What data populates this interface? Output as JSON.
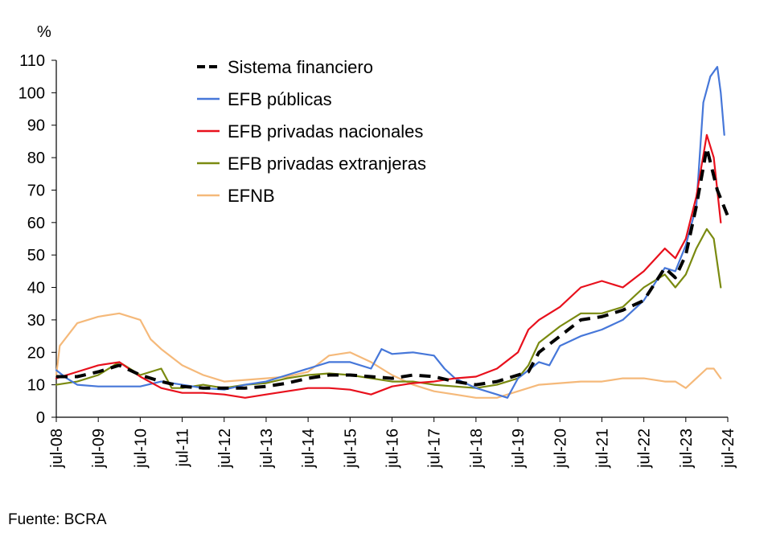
{
  "chart_data": {
    "type": "line",
    "ylabel": "%",
    "source": "Fuente: BCRA",
    "ylim": [
      0,
      110
    ],
    "yticks": [
      0,
      10,
      20,
      30,
      40,
      50,
      60,
      70,
      80,
      90,
      100,
      110
    ],
    "xlim": [
      "2008-07",
      "2024-07"
    ],
    "xticks": [
      {
        "date": "2008-07",
        "label": "jul-08"
      },
      {
        "date": "2009-07",
        "label": "jul-09"
      },
      {
        "date": "2010-07",
        "label": "jul-10"
      },
      {
        "date": "2011-07",
        "label": "jul-11"
      },
      {
        "date": "2012-07",
        "label": "jul-12"
      },
      {
        "date": "2013-07",
        "label": "jul-13"
      },
      {
        "date": "2014-07",
        "label": "jul-14"
      },
      {
        "date": "2015-07",
        "label": "jul-15"
      },
      {
        "date": "2016-07",
        "label": "jul-16"
      },
      {
        "date": "2017-07",
        "label": "jul-17"
      },
      {
        "date": "2018-07",
        "label": "jul-18"
      },
      {
        "date": "2019-07",
        "label": "jul-19"
      },
      {
        "date": "2020-07",
        "label": "jul-20"
      },
      {
        "date": "2021-07",
        "label": "jul-21"
      },
      {
        "date": "2022-07",
        "label": "jul-22"
      },
      {
        "date": "2023-07",
        "label": "jul-23"
      },
      {
        "date": "2024-07",
        "label": "jul-24"
      }
    ],
    "grid": false,
    "legend_position": "top-center",
    "series": [
      {
        "name": "Sistema financiero",
        "color": "#000000",
        "dashed": true,
        "points": [
          [
            "2008-07",
            12.5
          ],
          [
            "2009-01",
            12.5
          ],
          [
            "2009-07",
            14
          ],
          [
            "2010-01",
            16
          ],
          [
            "2010-07",
            13
          ],
          [
            "2011-01",
            11
          ],
          [
            "2011-07",
            9.5
          ],
          [
            "2012-01",
            9
          ],
          [
            "2012-07",
            9
          ],
          [
            "2013-01",
            9
          ],
          [
            "2013-07",
            9.5
          ],
          [
            "2014-01",
            10.5
          ],
          [
            "2014-07",
            12
          ],
          [
            "2015-01",
            13
          ],
          [
            "2015-07",
            13
          ],
          [
            "2016-01",
            12.5
          ],
          [
            "2016-07",
            12
          ],
          [
            "2017-01",
            13
          ],
          [
            "2017-07",
            12.5
          ],
          [
            "2018-01",
            11
          ],
          [
            "2018-07",
            10
          ],
          [
            "2019-01",
            11
          ],
          [
            "2019-07",
            13
          ],
          [
            "2019-10",
            14
          ],
          [
            "2020-01",
            20
          ],
          [
            "2020-07",
            25
          ],
          [
            "2021-01",
            30
          ],
          [
            "2021-07",
            31
          ],
          [
            "2022-01",
            33
          ],
          [
            "2022-07",
            36
          ],
          [
            "2023-01",
            46
          ],
          [
            "2023-04",
            43
          ],
          [
            "2023-07",
            50
          ],
          [
            "2023-10",
            65
          ],
          [
            "2024-01",
            83
          ],
          [
            "2024-04",
            70
          ],
          [
            "2024-07",
            62
          ]
        ]
      },
      {
        "name": "EFB públicas",
        "color": "#4677d9",
        "dashed": false,
        "points": [
          [
            "2008-07",
            14.5
          ],
          [
            "2008-10",
            12
          ],
          [
            "2009-01",
            10
          ],
          [
            "2009-07",
            9.5
          ],
          [
            "2010-01",
            9.5
          ],
          [
            "2010-07",
            9.5
          ],
          [
            "2011-01",
            11
          ],
          [
            "2011-07",
            10
          ],
          [
            "2012-01",
            9
          ],
          [
            "2012-07",
            8.5
          ],
          [
            "2013-01",
            10
          ],
          [
            "2013-07",
            11
          ],
          [
            "2014-01",
            13
          ],
          [
            "2014-07",
            15
          ],
          [
            "2015-01",
            17
          ],
          [
            "2015-07",
            17
          ],
          [
            "2016-01",
            15
          ],
          [
            "2016-04",
            21
          ],
          [
            "2016-07",
            19.5
          ],
          [
            "2017-01",
            20
          ],
          [
            "2017-07",
            19
          ],
          [
            "2017-10",
            15
          ],
          [
            "2018-01",
            12
          ],
          [
            "2018-07",
            9
          ],
          [
            "2019-01",
            7
          ],
          [
            "2019-04",
            6
          ],
          [
            "2019-07",
            12
          ],
          [
            "2020-01",
            17
          ],
          [
            "2020-04",
            16
          ],
          [
            "2020-07",
            22
          ],
          [
            "2021-01",
            25
          ],
          [
            "2021-07",
            27
          ],
          [
            "2022-01",
            30
          ],
          [
            "2022-07",
            36
          ],
          [
            "2023-01",
            46
          ],
          [
            "2023-04",
            45
          ],
          [
            "2023-07",
            53
          ],
          [
            "2023-10",
            65
          ],
          [
            "2023-12",
            97
          ],
          [
            "2024-02",
            105
          ],
          [
            "2024-04",
            108
          ],
          [
            "2024-05",
            100
          ],
          [
            "2024-06",
            87
          ]
        ]
      },
      {
        "name": "EFB privadas nacionales",
        "color": "#e8101c",
        "dashed": false,
        "points": [
          [
            "2008-07",
            12
          ],
          [
            "2009-01",
            14
          ],
          [
            "2009-07",
            16
          ],
          [
            "2010-01",
            17
          ],
          [
            "2010-07",
            12.5
          ],
          [
            "2011-01",
            9
          ],
          [
            "2011-07",
            7.5
          ],
          [
            "2012-01",
            7.5
          ],
          [
            "2012-07",
            7
          ],
          [
            "2013-01",
            6
          ],
          [
            "2013-07",
            7
          ],
          [
            "2014-01",
            8
          ],
          [
            "2014-07",
            9
          ],
          [
            "2015-01",
            9
          ],
          [
            "2015-07",
            8.5
          ],
          [
            "2016-01",
            7
          ],
          [
            "2016-07",
            9.5
          ],
          [
            "2017-01",
            10.5
          ],
          [
            "2017-07",
            11
          ],
          [
            "2018-01",
            12
          ],
          [
            "2018-07",
            12.5
          ],
          [
            "2019-01",
            15
          ],
          [
            "2019-07",
            20
          ],
          [
            "2019-10",
            27
          ],
          [
            "2020-01",
            30
          ],
          [
            "2020-07",
            34
          ],
          [
            "2021-01",
            40
          ],
          [
            "2021-07",
            42
          ],
          [
            "2022-01",
            40
          ],
          [
            "2022-07",
            45
          ],
          [
            "2023-01",
            52
          ],
          [
            "2023-04",
            49
          ],
          [
            "2023-07",
            55
          ],
          [
            "2023-10",
            68
          ],
          [
            "2024-01",
            87
          ],
          [
            "2024-03",
            80
          ],
          [
            "2024-05",
            60
          ]
        ]
      },
      {
        "name": "EFB privadas extranjeras",
        "color": "#7a8a10",
        "dashed": false,
        "points": [
          [
            "2008-07",
            10
          ],
          [
            "2009-01",
            11
          ],
          [
            "2009-07",
            13
          ],
          [
            "2010-01",
            17
          ],
          [
            "2010-07",
            13
          ],
          [
            "2011-01",
            15
          ],
          [
            "2011-04",
            9
          ],
          [
            "2011-07",
            9
          ],
          [
            "2012-01",
            10
          ],
          [
            "2012-07",
            9
          ],
          [
            "2013-01",
            10
          ],
          [
            "2013-07",
            10.5
          ],
          [
            "2014-01",
            12
          ],
          [
            "2014-07",
            13
          ],
          [
            "2015-01",
            13.5
          ],
          [
            "2015-07",
            13
          ],
          [
            "2016-01",
            12
          ],
          [
            "2016-07",
            11
          ],
          [
            "2017-01",
            11
          ],
          [
            "2017-07",
            10
          ],
          [
            "2018-01",
            9.5
          ],
          [
            "2018-07",
            9
          ],
          [
            "2019-01",
            10
          ],
          [
            "2019-07",
            12
          ],
          [
            "2019-10",
            16
          ],
          [
            "2020-01",
            23
          ],
          [
            "2020-07",
            28
          ],
          [
            "2021-01",
            32
          ],
          [
            "2021-07",
            32
          ],
          [
            "2022-01",
            34
          ],
          [
            "2022-07",
            40
          ],
          [
            "2023-01",
            44
          ],
          [
            "2023-04",
            40
          ],
          [
            "2023-07",
            44
          ],
          [
            "2023-10",
            52
          ],
          [
            "2024-01",
            58
          ],
          [
            "2024-03",
            55
          ],
          [
            "2024-05",
            40
          ]
        ]
      },
      {
        "name": "EFNB",
        "color": "#f5b97a",
        "dashed": false,
        "points": [
          [
            "2008-07",
            13
          ],
          [
            "2008-08",
            22
          ],
          [
            "2009-01",
            29
          ],
          [
            "2009-07",
            31
          ],
          [
            "2010-01",
            32
          ],
          [
            "2010-07",
            30
          ],
          [
            "2010-10",
            24
          ],
          [
            "2011-01",
            21
          ],
          [
            "2011-07",
            16
          ],
          [
            "2012-01",
            13
          ],
          [
            "2012-07",
            11
          ],
          [
            "2013-01",
            11.5
          ],
          [
            "2013-07",
            12
          ],
          [
            "2014-01",
            12.5
          ],
          [
            "2014-07",
            14
          ],
          [
            "2015-01",
            19
          ],
          [
            "2015-07",
            20
          ],
          [
            "2016-01",
            17
          ],
          [
            "2016-07",
            13
          ],
          [
            "2017-01",
            10
          ],
          [
            "2017-07",
            8
          ],
          [
            "2018-01",
            7
          ],
          [
            "2018-07",
            6
          ],
          [
            "2019-01",
            6
          ],
          [
            "2019-07",
            8
          ],
          [
            "2020-01",
            10
          ],
          [
            "2020-07",
            10.5
          ],
          [
            "2021-01",
            11
          ],
          [
            "2021-07",
            11
          ],
          [
            "2022-01",
            12
          ],
          [
            "2022-07",
            12
          ],
          [
            "2023-01",
            11
          ],
          [
            "2023-04",
            11
          ],
          [
            "2023-07",
            9
          ],
          [
            "2023-10",
            12
          ],
          [
            "2024-01",
            15
          ],
          [
            "2024-03",
            15
          ],
          [
            "2024-05",
            12
          ]
        ]
      }
    ]
  }
}
